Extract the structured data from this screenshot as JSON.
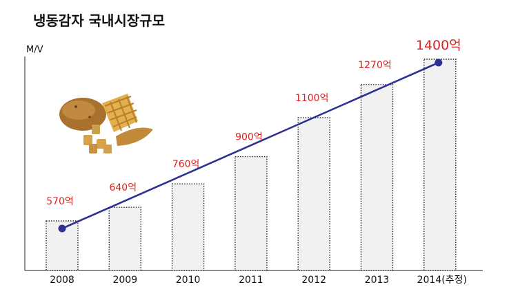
{
  "title": "냉동감자 국내시장규모",
  "chart_data": {
    "type": "bar",
    "title": "냉동감자 국내시장규모",
    "ylabel": "M/V",
    "xlabel": "",
    "categories": [
      "2008",
      "2009",
      "2010",
      "2011",
      "2012",
      "2013",
      "2014(추정)"
    ],
    "values": [
      570,
      640,
      760,
      900,
      1100,
      1270,
      1400
    ],
    "value_labels": [
      "570억",
      "640억",
      "760억",
      "900억",
      "1100억",
      "1270억",
      "1400억"
    ],
    "overlay": "line with markers at 2008 and 2014(추정)",
    "bar_color": "#f1f1f1",
    "bar_border": "dotted",
    "line_color": "#2e3192",
    "label_color": "#e0201c",
    "ylim": [
      0,
      1400
    ]
  },
  "decoration": {
    "image": "potato-and-fries-illustration"
  }
}
